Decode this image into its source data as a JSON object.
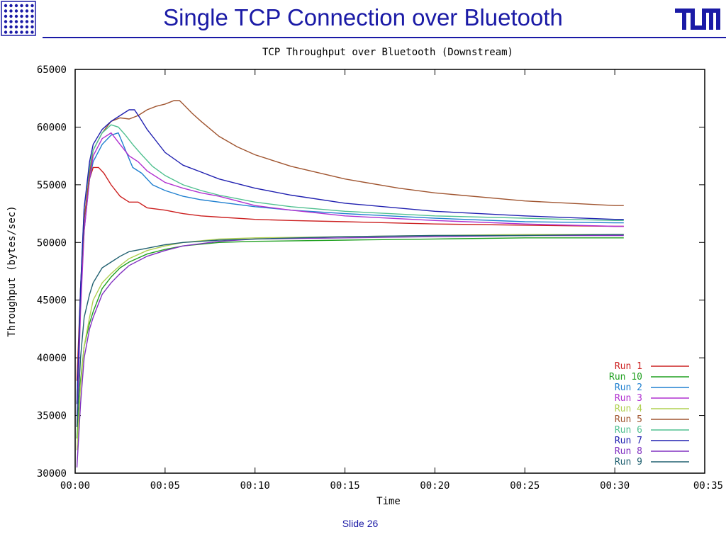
{
  "header": {
    "title": "Single TCP Connection over Bluetooth",
    "left_logo_icon": "institute-dot-grid-logo",
    "right_logo_icon": "tum-logo",
    "accent_color": "#1a1aa6"
  },
  "footer": {
    "slide_label": "Slide 26"
  },
  "chart_data": {
    "type": "line",
    "title": "TCP Throughput over Bluetooth (Downstream)",
    "xlabel": "Time",
    "ylabel": "Throughput (bytes/sec)",
    "xlim": [
      0,
      35
    ],
    "ylim": [
      30000,
      65000
    ],
    "x_unit": "seconds",
    "x_ticks": [
      0,
      5,
      10,
      15,
      20,
      25,
      30,
      35
    ],
    "x_tick_labels": [
      "00:00",
      "00:05",
      "00:10",
      "00:15",
      "00:20",
      "00:25",
      "00:30",
      "00:35"
    ],
    "y_ticks": [
      30000,
      35000,
      40000,
      45000,
      50000,
      55000,
      60000,
      65000
    ],
    "y_tick_labels": [
      "30000",
      "35000",
      "40000",
      "45000",
      "50000",
      "55000",
      "60000",
      "65000"
    ],
    "grid": false,
    "legend_position": "bottom-right",
    "series": [
      {
        "name": "Run 1",
        "color": "#cc2020",
        "x": [
          0.1,
          0.3,
          0.5,
          0.8,
          1.0,
          1.3,
          1.6,
          2.0,
          2.5,
          3.0,
          3.5,
          4.0,
          5.0,
          6.0,
          7.0,
          8.0,
          10.0,
          12.0,
          15.0,
          20.0,
          25.0,
          30.0,
          30.5
        ],
        "y": [
          38000,
          46000,
          52000,
          55500,
          56500,
          56500,
          56000,
          55000,
          54000,
          53500,
          53500,
          53000,
          52800,
          52500,
          52300,
          52200,
          52000,
          51900,
          51800,
          51600,
          51500,
          51400,
          51400
        ]
      },
      {
        "name": "Run 10",
        "color": "#20a020",
        "x": [
          0.1,
          0.3,
          0.5,
          0.8,
          1.0,
          1.5,
          2.0,
          2.5,
          3.0,
          4.0,
          5.0,
          6.0,
          8.0,
          10.0,
          15.0,
          20.0,
          25.0,
          30.0,
          30.5
        ],
        "y": [
          33000,
          38000,
          41000,
          43000,
          44000,
          46000,
          47000,
          47800,
          48300,
          49000,
          49400,
          49700,
          50000,
          50100,
          50200,
          50300,
          50400,
          50400,
          50400
        ]
      },
      {
        "name": "Run 2",
        "color": "#2080d0",
        "x": [
          0.1,
          0.3,
          0.5,
          0.8,
          1.0,
          1.5,
          2.0,
          2.4,
          2.8,
          3.2,
          3.7,
          4.3,
          5.0,
          6.0,
          7.0,
          8.0,
          10.0,
          12.0,
          15.0,
          20.0,
          25.0,
          30.0,
          30.5
        ],
        "y": [
          35000,
          45000,
          51000,
          55500,
          57000,
          58500,
          59300,
          59500,
          58000,
          56500,
          56000,
          55000,
          54500,
          54000,
          53700,
          53500,
          53100,
          52800,
          52500,
          52100,
          51800,
          51700,
          51700
        ]
      },
      {
        "name": "Run 3",
        "color": "#b030d0",
        "x": [
          0.1,
          0.3,
          0.5,
          0.8,
          1.0,
          1.5,
          2.0,
          2.5,
          3.0,
          3.5,
          4.0,
          5.0,
          6.0,
          7.0,
          8.0,
          10.0,
          12.0,
          15.0,
          20.0,
          25.0,
          30.0,
          30.5
        ],
        "y": [
          34000,
          44000,
          51000,
          55500,
          57500,
          59000,
          59500,
          58500,
          57500,
          57000,
          56200,
          55200,
          54700,
          54300,
          54000,
          53200,
          52800,
          52300,
          51900,
          51600,
          51400,
          51400
        ]
      },
      {
        "name": "Run 4",
        "color": "#b0d050",
        "x": [
          0.1,
          0.3,
          0.5,
          0.8,
          1.0,
          1.5,
          2.0,
          2.5,
          3.0,
          4.0,
          5.0,
          6.0,
          8.0,
          10.0,
          15.0,
          20.0,
          25.0,
          30.0,
          30.5
        ],
        "y": [
          32000,
          37500,
          41000,
          43500,
          45000,
          46500,
          47300,
          48000,
          48600,
          49300,
          49700,
          50000,
          50300,
          50400,
          50500,
          50600,
          50700,
          50700,
          50700
        ]
      },
      {
        "name": "Run 5",
        "color": "#a05530",
        "x": [
          0.1,
          0.3,
          0.5,
          0.8,
          1.0,
          1.5,
          2.0,
          2.5,
          3.0,
          3.5,
          4.0,
          4.5,
          5.0,
          5.5,
          5.8,
          6.0,
          6.5,
          7.0,
          8.0,
          9.0,
          10.0,
          12.0,
          15.0,
          18.0,
          20.0,
          25.0,
          30.0,
          30.5
        ],
        "y": [
          36000,
          46000,
          52000,
          56000,
          58000,
          59500,
          60500,
          60800,
          60700,
          61000,
          61500,
          61800,
          62000,
          62300,
          62300,
          62000,
          61200,
          60500,
          59200,
          58300,
          57600,
          56600,
          55500,
          54700,
          54300,
          53600,
          53200,
          53200
        ]
      },
      {
        "name": "Run 6",
        "color": "#50c090",
        "x": [
          0.1,
          0.3,
          0.5,
          0.8,
          1.0,
          1.5,
          2.0,
          2.4,
          2.8,
          3.2,
          3.7,
          4.3,
          5.0,
          6.0,
          7.0,
          8.0,
          10.0,
          12.0,
          15.0,
          20.0,
          25.0,
          30.0,
          30.5
        ],
        "y": [
          36000,
          46000,
          53000,
          56500,
          58000,
          59500,
          60200,
          60000,
          59300,
          58500,
          57600,
          56600,
          55800,
          55000,
          54500,
          54100,
          53500,
          53100,
          52700,
          52300,
          52100,
          51900,
          51900
        ]
      },
      {
        "name": "Run 7",
        "color": "#2020b0",
        "x": [
          0.1,
          0.3,
          0.5,
          0.8,
          1.0,
          1.5,
          2.0,
          2.5,
          3.0,
          3.3,
          3.6,
          4.0,
          4.5,
          5.0,
          6.0,
          7.0,
          8.0,
          10.0,
          12.0,
          15.0,
          20.0,
          25.0,
          30.0,
          30.5
        ],
        "y": [
          36000,
          46000,
          53000,
          57000,
          58500,
          59800,
          60500,
          61000,
          61500,
          61500,
          60800,
          59800,
          58800,
          57800,
          56700,
          56100,
          55500,
          54700,
          54100,
          53400,
          52700,
          52300,
          52000,
          52000
        ]
      },
      {
        "name": "Run 8",
        "color": "#8030c0",
        "x": [
          0.1,
          0.3,
          0.5,
          0.8,
          1.0,
          1.5,
          2.0,
          2.5,
          3.0,
          4.0,
          5.0,
          6.0,
          8.0,
          10.0,
          15.0,
          20.0,
          25.0,
          30.0,
          30.5
        ],
        "y": [
          30500,
          36000,
          40000,
          42500,
          43500,
          45500,
          46500,
          47300,
          48000,
          48800,
          49300,
          49700,
          50100,
          50300,
          50400,
          50500,
          50600,
          50600,
          50600
        ]
      },
      {
        "name": "Run 9",
        "color": "#206070",
        "x": [
          0.1,
          0.3,
          0.5,
          0.8,
          1.0,
          1.5,
          2.0,
          2.5,
          3.0,
          4.0,
          5.0,
          6.0,
          8.0,
          10.0,
          15.0,
          20.0,
          25.0,
          30.0,
          30.5
        ],
        "y": [
          34000,
          40000,
          43500,
          45500,
          46500,
          47800,
          48300,
          48800,
          49200,
          49500,
          49800,
          50000,
          50200,
          50300,
          50500,
          50600,
          50600,
          50700,
          50700
        ]
      }
    ]
  }
}
